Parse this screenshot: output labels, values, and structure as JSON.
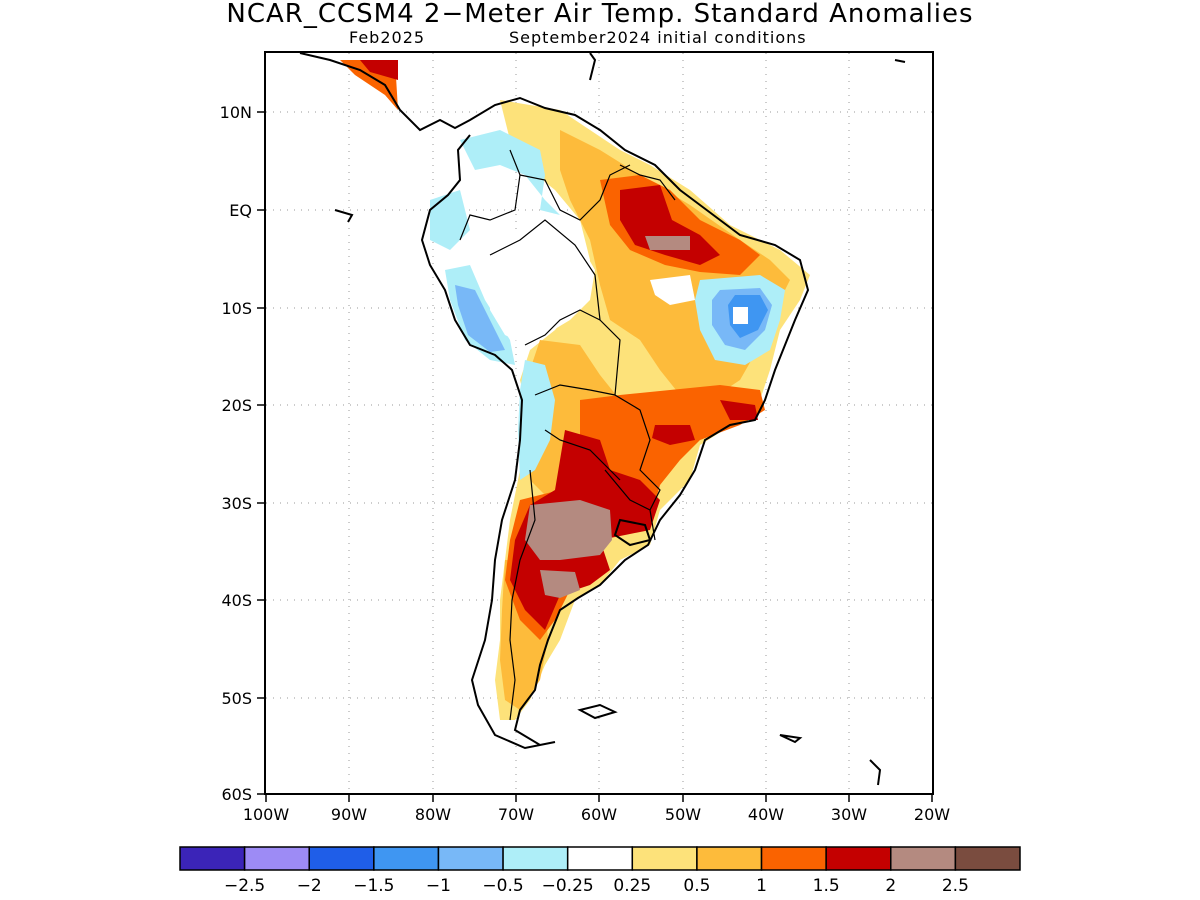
{
  "title": "NCAR_CCSM4 2−Meter Air Temp. Standard Anomalies",
  "subtitle_left": "Feb2025",
  "subtitle_right": "September2024 initial conditions",
  "lat_labels": [
    "10N",
    "EQ",
    "10S",
    "20S",
    "30S",
    "40S",
    "50S",
    "60S"
  ],
  "lon_labels": [
    "100W",
    "90W",
    "80W",
    "70W",
    "60W",
    "50W",
    "40W",
    "30W",
    "20W"
  ],
  "colorbar": {
    "colors": [
      "#3b24b8",
      "#9d8bf5",
      "#1f5ee8",
      "#3f96f2",
      "#78b8f7",
      "#aeeef8",
      "#ffffff",
      "#fde27a",
      "#fdbb3b",
      "#fa6300",
      "#c40000",
      "#b48a80",
      "#7a4c3f"
    ],
    "labels": [
      "−2.5",
      "−2",
      "−1.5",
      "−1",
      "−0.5",
      "−0.25",
      "0.25",
      "0.5",
      "1",
      "1.5",
      "2",
      "2.5"
    ]
  }
}
